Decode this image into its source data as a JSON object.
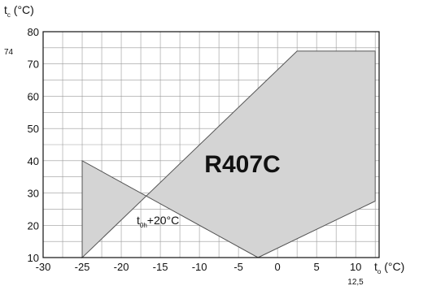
{
  "chart_data": {
    "type": "area",
    "series_label": "R407C",
    "xlabel": {
      "main": "t",
      "sub": "o",
      "unit": " (°C)"
    },
    "ylabel": {
      "main": "t",
      "sub": "c",
      "unit": " (°C)"
    },
    "annotation": {
      "main": "t",
      "sub": "0h",
      "rest": "+20°C"
    },
    "xlim": [
      -30,
      13
    ],
    "ylim": [
      10,
      80
    ],
    "x_ticks": [
      -30,
      -25,
      -20,
      -15,
      -10,
      -5,
      0,
      5,
      10
    ],
    "y_ticks": [
      10,
      20,
      30,
      40,
      50,
      60,
      70,
      80
    ],
    "extra_x_tick": {
      "value": 12.5,
      "label": "12,5"
    },
    "extra_y_tick": {
      "value": 74,
      "label": "74"
    },
    "grid": true,
    "fill_color": "#d4d4d4",
    "envelope": {
      "x": [
        -25,
        -25,
        -2.5,
        12.5,
        12.5,
        2.5
      ],
      "y": [
        10,
        40,
        10,
        27.5,
        74,
        74
      ]
    }
  }
}
